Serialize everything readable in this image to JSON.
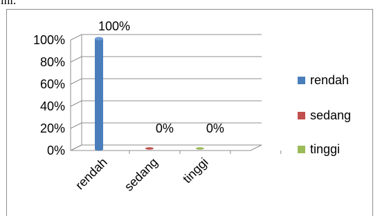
{
  "page_text": "ini.",
  "chart_data": {
    "type": "bar",
    "categories": [
      "rendah",
      "sedang",
      "tinggi"
    ],
    "series": [
      {
        "name": "rendah",
        "values": [
          100,
          0,
          0
        ],
        "color": "#4a7ebb"
      },
      {
        "name": "sedang",
        "values": [
          0,
          0,
          0
        ],
        "color": "#c0504d"
      },
      {
        "name": "tinggi",
        "values": [
          0,
          0,
          0
        ],
        "color": "#9bbb59"
      }
    ],
    "data_labels": [
      "100%",
      "0%",
      "0%"
    ],
    "yticks": [
      "0%",
      "20%",
      "40%",
      "60%",
      "80%",
      "100%"
    ],
    "ylim": [
      0,
      100
    ],
    "legend": [
      "rendah",
      "sedang",
      "tinggi"
    ],
    "legend_position": "right",
    "grid": true,
    "style": "3d-cylinder"
  }
}
